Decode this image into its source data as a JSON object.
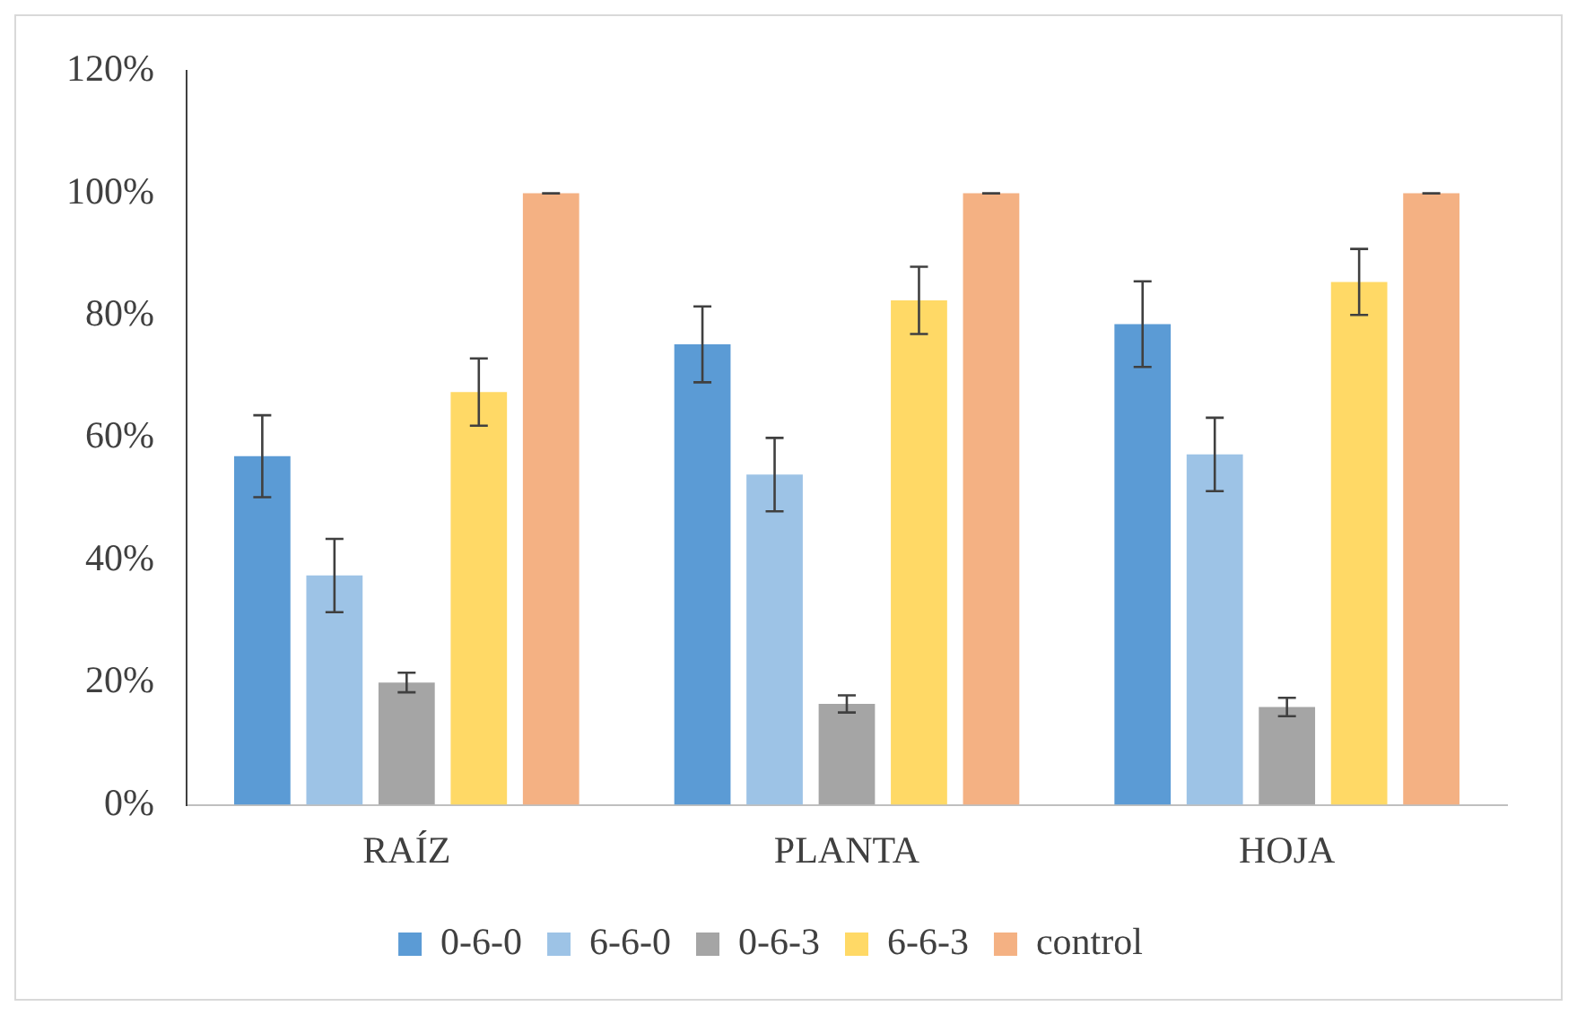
{
  "chart_data": {
    "type": "bar",
    "categories": [
      "RAÍZ",
      "PLANTA",
      "HOJA"
    ],
    "series": [
      {
        "name": "0-6-0",
        "color": "#5b9bd5",
        "values": [
          57,
          75.3,
          78.6
        ],
        "errors": [
          6.7,
          6.2,
          7
        ]
      },
      {
        "name": "6-6-0",
        "color": "#9dc3e6",
        "values": [
          37.5,
          54,
          57.3
        ],
        "errors": [
          6,
          6,
          6
        ]
      },
      {
        "name": "0-6-3",
        "color": "#a5a5a5",
        "values": [
          20,
          16.5,
          16
        ],
        "errors": [
          1.6,
          1.4,
          1.5
        ]
      },
      {
        "name": "6-6-3",
        "color": "#ffd966",
        "values": [
          67.5,
          82.5,
          85.5
        ],
        "errors": [
          5.5,
          5.5,
          5.4
        ]
      },
      {
        "name": "control",
        "color": "#f4b183",
        "values": [
          100,
          100,
          100
        ],
        "errors": [
          0,
          0,
          0
        ]
      }
    ],
    "ylim": [
      0,
      120
    ],
    "yticks": [
      {
        "value": 0,
        "label": "0%"
      },
      {
        "value": 20,
        "label": "20%"
      },
      {
        "value": 40,
        "label": "40%"
      },
      {
        "value": 60,
        "label": "60%"
      },
      {
        "value": 80,
        "label": "80%"
      },
      {
        "value": 100,
        "label": "100%"
      },
      {
        "value": 120,
        "label": "120%"
      }
    ],
    "grid": false,
    "legend": "bottom"
  }
}
